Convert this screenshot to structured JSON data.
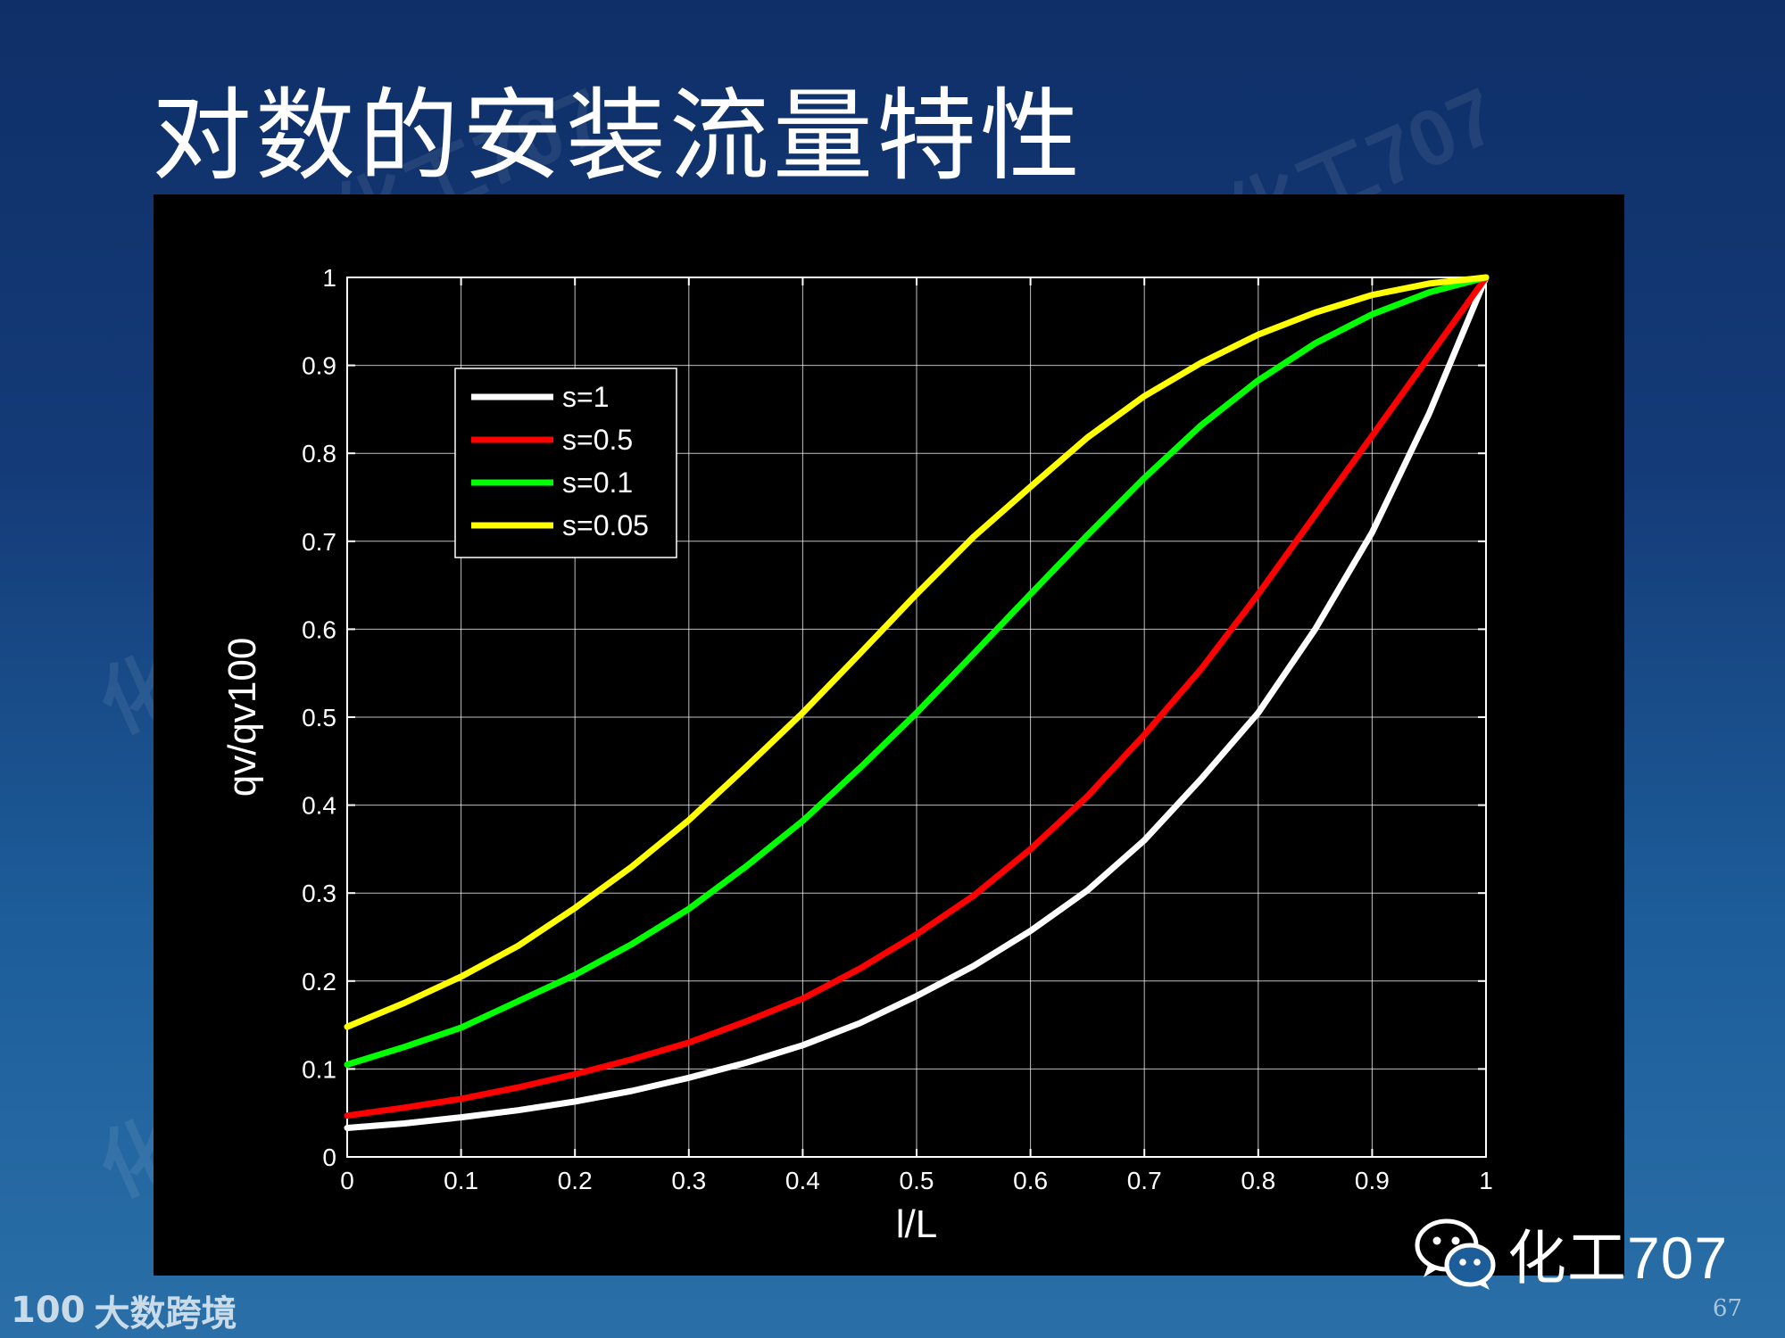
{
  "slide": {
    "title": "对数的安装流量特性",
    "page_number": "67"
  },
  "watermark": {
    "text": "化工707"
  },
  "brand": {
    "text": "化工707",
    "icon": "wechat-icon"
  },
  "footer": {
    "logo_mark": "100",
    "logo_text": "大数跨境"
  },
  "chart_data": {
    "type": "line",
    "xlabel": "l/L",
    "ylabel": "qv/qv100",
    "xlim": [
      0,
      1
    ],
    "ylim": [
      0,
      1
    ],
    "xticks": [
      "0",
      "0.1",
      "0.2",
      "0.3",
      "0.4",
      "0.5",
      "0.6",
      "0.7",
      "0.8",
      "0.9",
      "1"
    ],
    "yticks": [
      "0",
      "0.1",
      "0.2",
      "0.3",
      "0.4",
      "0.5",
      "0.6",
      "0.7",
      "0.8",
      "0.9",
      "1"
    ],
    "grid": true,
    "legend_position": "top-left",
    "x": [
      0,
      0.05,
      0.1,
      0.15,
      0.2,
      0.25,
      0.3,
      0.35,
      0.4,
      0.45,
      0.5,
      0.55,
      0.6,
      0.65,
      0.7,
      0.75,
      0.8,
      0.85,
      0.9,
      0.95,
      1
    ],
    "series": [
      {
        "name": "s=1",
        "color": "#ffffff",
        "values": [
          0.033,
          0.038,
          0.045,
          0.053,
          0.063,
          0.075,
          0.09,
          0.107,
          0.127,
          0.152,
          0.183,
          0.217,
          0.257,
          0.303,
          0.36,
          0.43,
          0.505,
          0.6,
          0.71,
          0.845,
          1.0
        ]
      },
      {
        "name": "s=0.5",
        "color": "#ff0000",
        "values": [
          0.047,
          0.056,
          0.066,
          0.079,
          0.094,
          0.111,
          0.13,
          0.154,
          0.18,
          0.214,
          0.253,
          0.297,
          0.35,
          0.41,
          0.48,
          0.555,
          0.64,
          0.73,
          0.82,
          0.91,
          1.0
        ]
      },
      {
        "name": "s=0.1",
        "color": "#00ff00",
        "values": [
          0.105,
          0.125,
          0.147,
          0.177,
          0.207,
          0.242,
          0.282,
          0.33,
          0.382,
          0.442,
          0.505,
          0.572,
          0.64,
          0.707,
          0.772,
          0.832,
          0.883,
          0.925,
          0.958,
          0.983,
          1.0
        ]
      },
      {
        "name": "s=0.05",
        "color": "#ffff00",
        "values": [
          0.148,
          0.175,
          0.205,
          0.24,
          0.283,
          0.33,
          0.383,
          0.443,
          0.505,
          0.572,
          0.64,
          0.705,
          0.762,
          0.818,
          0.865,
          0.903,
          0.935,
          0.96,
          0.98,
          0.993,
          1.0
        ]
      }
    ]
  }
}
